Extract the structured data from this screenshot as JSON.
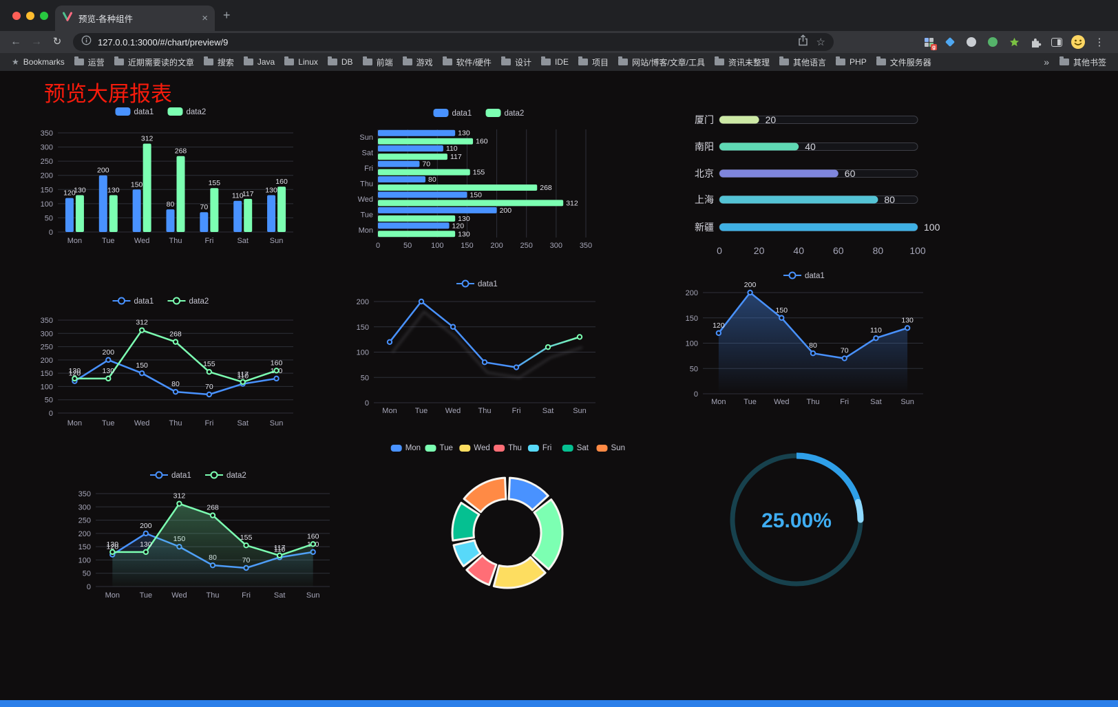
{
  "browser": {
    "tab": {
      "title": "预览-各种组件",
      "close": "×",
      "new_tab": "+"
    },
    "toolbar": {
      "url": "127.0.0.1:3000/#/chart/preview/9"
    },
    "bookmarks": {
      "first": "Bookmarks",
      "folders": [
        "运营",
        "近期需要读的文章",
        "搜索",
        "Java",
        "Linux",
        "DB",
        "前端",
        "游戏",
        "软件/硬件",
        "设计",
        "IDE",
        "项目",
        "网站/博客/文章/工具",
        "资讯未整理",
        "其他语言",
        "PHP",
        "文件服务器"
      ],
      "overflow": "»",
      "other": "其他书签"
    }
  },
  "page": {
    "title": "预览大屏报表",
    "title_color": "#f71b0c",
    "accent_bar_color": "#2b7fe9"
  },
  "style": {
    "axis_label_color": "#a6a6b8",
    "grid_color": "#2f3039",
    "value_label_color": "#e0e0e8",
    "legend_text_color": "#c6c6d2",
    "background": "#0f0d0e"
  },
  "chart_data": [
    {
      "id": "bar-vertical",
      "type": "bar",
      "orientation": "vertical",
      "categories": [
        "Mon",
        "Tue",
        "Wed",
        "Thu",
        "Fri",
        "Sat",
        "Sun"
      ],
      "series": [
        {
          "name": "data1",
          "color": "#4992ff",
          "values": [
            120,
            200,
            150,
            80,
            70,
            110,
            130
          ]
        },
        {
          "name": "data2",
          "color": "#7cffb2",
          "values": [
            130,
            130,
            312,
            268,
            155,
            117,
            160
          ]
        }
      ],
      "ylim": [
        0,
        350
      ],
      "ytick_step": 50,
      "value_labels": true,
      "legend_position": "top"
    },
    {
      "id": "bar-horizontal",
      "type": "bar",
      "orientation": "horizontal",
      "categories": [
        "Mon",
        "Tue",
        "Wed",
        "Thu",
        "Fri",
        "Sat",
        "Sun"
      ],
      "series": [
        {
          "name": "data1",
          "color": "#4992ff",
          "values": [
            120,
            200,
            150,
            80,
            70,
            110,
            130
          ]
        },
        {
          "name": "data2",
          "color": "#7cffb2",
          "values": [
            130,
            130,
            312,
            268,
            155,
            117,
            160
          ]
        }
      ],
      "xlim": [
        0,
        350
      ],
      "xtick_step": 50,
      "value_labels": true,
      "legend_position": "top"
    },
    {
      "id": "progress-list",
      "type": "bar",
      "orientation": "horizontal-progress",
      "items": [
        {
          "label": "厦门",
          "value": 20,
          "color": "#cde9a5"
        },
        {
          "label": "南阳",
          "value": 40,
          "color": "#5fd9b4"
        },
        {
          "label": "北京",
          "value": 60,
          "color": "#7f86dd"
        },
        {
          "label": "上海",
          "value": 80,
          "color": "#54c3d5"
        },
        {
          "label": "新疆",
          "value": 100,
          "color": "#3fb0e4"
        }
      ],
      "xlim": [
        0,
        100
      ],
      "xticks": [
        0,
        20,
        40,
        60,
        80,
        100
      ]
    },
    {
      "id": "line-dual",
      "type": "line",
      "categories": [
        "Mon",
        "Tue",
        "Wed",
        "Thu",
        "Fri",
        "Sat",
        "Sun"
      ],
      "series": [
        {
          "name": "data1",
          "color": "#4992ff",
          "values": [
            120,
            200,
            150,
            80,
            70,
            110,
            130
          ]
        },
        {
          "name": "data2",
          "color": "#7cffb2",
          "values": [
            130,
            130,
            312,
            268,
            155,
            117,
            160
          ]
        }
      ],
      "ylim": [
        0,
        350
      ],
      "ytick_step": 50,
      "value_labels": true,
      "legend_position": "top"
    },
    {
      "id": "line-gradient",
      "type": "line",
      "categories": [
        "Mon",
        "Tue",
        "Wed",
        "Thu",
        "Fri",
        "Sat",
        "Sun"
      ],
      "series": [
        {
          "name": "data1",
          "color": "#4992ff",
          "color_end": "#7cffb2",
          "values": [
            120,
            200,
            150,
            80,
            70,
            110,
            130
          ]
        }
      ],
      "ylim": [
        0,
        200
      ],
      "ytick_step": 50,
      "value_labels": false,
      "shadow": true,
      "legend_position": "top"
    },
    {
      "id": "line-area",
      "type": "area",
      "categories": [
        "Mon",
        "Tue",
        "Wed",
        "Thu",
        "Fri",
        "Sat",
        "Sun"
      ],
      "series": [
        {
          "name": "data1",
          "color": "#4992ff",
          "values": [
            120,
            200,
            150,
            80,
            70,
            110,
            130
          ],
          "area": true
        }
      ],
      "ylim": [
        0,
        200
      ],
      "ytick_step": 50,
      "value_labels": true,
      "legend_position": "top"
    },
    {
      "id": "line-dual-area",
      "type": "line",
      "categories": [
        "Mon",
        "Tue",
        "Wed",
        "Thu",
        "Fri",
        "Sat",
        "Sun"
      ],
      "series": [
        {
          "name": "data1",
          "color": "#4992ff",
          "values": [
            120,
            200,
            150,
            80,
            70,
            110,
            130
          ],
          "area": true
        },
        {
          "name": "data2",
          "color": "#7cffb2",
          "values": [
            130,
            130,
            312,
            268,
            155,
            117,
            160
          ],
          "area": true
        }
      ],
      "ylim": [
        0,
        350
      ],
      "ytick_step": 50,
      "value_labels": true,
      "legend_position": "top"
    },
    {
      "id": "donut",
      "type": "pie",
      "labels": [
        "Mon",
        "Tue",
        "Wed",
        "Thu",
        "Fri",
        "Sat",
        "Sun"
      ],
      "values": [
        120,
        200,
        150,
        80,
        70,
        110,
        130
      ],
      "colors": [
        "#4992ff",
        "#7cffb2",
        "#fddd60",
        "#ff6e76",
        "#58d9f9",
        "#05c091",
        "#ff8a45"
      ],
      "inner_radius_ratio": 0.6,
      "border_color": "#f6f4ef",
      "legend_position": "top"
    },
    {
      "id": "gauge",
      "type": "gauge",
      "value": 25,
      "label": "25.00%",
      "progress_color": "#2f9fe8",
      "highlight_color": "#8fd9ff",
      "track_color": "#17414d",
      "text_color": "#3fadf2"
    }
  ]
}
